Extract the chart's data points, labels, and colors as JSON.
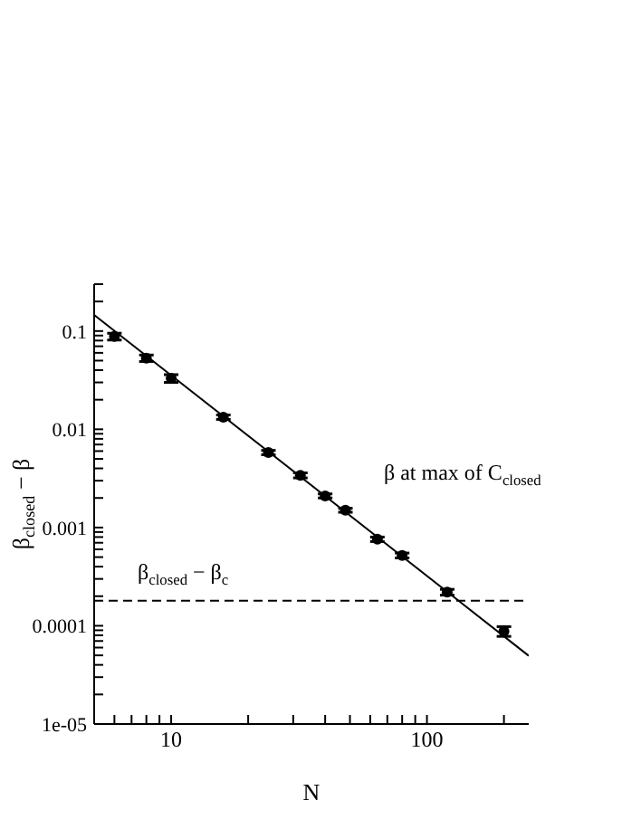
{
  "chart_data": {
    "type": "scatter",
    "xlabel": "N",
    "ylabel": "β$_{closed}$ − β",
    "log": "xy",
    "xlim": [
      5,
      250
    ],
    "ylim": [
      1e-05,
      0.3
    ],
    "xticks": [
      {
        "value": 5,
        "label": null
      },
      {
        "value": 6,
        "label": null
      },
      {
        "value": 7,
        "label": null
      },
      {
        "value": 8,
        "label": null
      },
      {
        "value": 9,
        "label": null
      },
      10,
      {
        "value": 20,
        "label": null
      },
      {
        "value": 30,
        "label": null
      },
      {
        "value": 40,
        "label": null
      },
      {
        "value": 50,
        "label": null
      },
      {
        "value": 60,
        "label": null
      },
      {
        "value": 70,
        "label": null
      },
      {
        "value": 80,
        "label": null
      },
      {
        "value": 90,
        "label": null
      },
      100,
      {
        "value": 200,
        "label": null
      }
    ],
    "yticks": [
      {
        "value": 1e-05,
        "label": "1e-05"
      },
      {
        "value": 2e-05,
        "label": null
      },
      {
        "value": 3e-05,
        "label": null
      },
      {
        "value": 4e-05,
        "label": null
      },
      {
        "value": 5e-05,
        "label": null
      },
      {
        "value": 6e-05,
        "label": null
      },
      {
        "value": 7e-05,
        "label": null
      },
      {
        "value": 8e-05,
        "label": null
      },
      {
        "value": 9e-05,
        "label": null
      },
      {
        "value": 0.0001,
        "label": "0.0001"
      },
      {
        "value": 0.0002,
        "label": null
      },
      {
        "value": 0.0003,
        "label": null
      },
      {
        "value": 0.0004,
        "label": null
      },
      {
        "value": 0.0005,
        "label": null
      },
      {
        "value": 0.0006,
        "label": null
      },
      {
        "value": 0.0007,
        "label": null
      },
      {
        "value": 0.0008,
        "label": null
      },
      {
        "value": 0.0009,
        "label": null
      },
      0.001,
      {
        "value": 0.002,
        "label": null
      },
      {
        "value": 0.003,
        "label": null
      },
      {
        "value": 0.004,
        "label": null
      },
      {
        "value": 0.005,
        "label": null
      },
      {
        "value": 0.006,
        "label": null
      },
      {
        "value": 0.007,
        "label": null
      },
      {
        "value": 0.008,
        "label": null
      },
      {
        "value": 0.009,
        "label": null
      },
      0.01,
      {
        "value": 0.02,
        "label": null
      },
      {
        "value": 0.03,
        "label": null
      },
      {
        "value": 0.04,
        "label": null
      },
      {
        "value": 0.05,
        "label": null
      },
      {
        "value": 0.06,
        "label": null
      },
      {
        "value": 0.07,
        "label": null
      },
      {
        "value": 0.08,
        "label": null
      },
      {
        "value": 0.09,
        "label": null
      },
      0.1,
      {
        "value": 0.2,
        "label": null
      },
      {
        "value": 0.3,
        "label": null
      }
    ],
    "x": [
      6,
      8,
      10,
      16,
      24,
      32,
      40,
      48,
      64,
      80,
      120,
      200
    ],
    "series": [
      {
        "color": "#000000",
        "marker": "circle",
        "values": [
          0.088,
          0.053,
          0.033,
          0.0133,
          0.0058,
          0.0034,
          0.0021,
          0.0015,
          0.00076,
          0.00052,
          0.00022,
          8.8e-05
        ],
        "errors": [
          0.007,
          0.004,
          0.003,
          0.0007,
          0.0003,
          0.0002,
          0.0001,
          7e-05,
          4e-05,
          3e-05,
          1.5e-05,
          1e-05
        ]
      },
      {
        "type": "line",
        "color": "#000000",
        "x": [
          5,
          250
        ],
        "values": [
          0.146,
          4.95e-05
        ],
        "line_style": "solid"
      }
    ],
    "ref_lines": [
      {
        "axis": "y",
        "value": 0.00018,
        "label": "β$_{closed}$ − β$_{c}$",
        "line_style": "dashed",
        "color": "#000000"
      }
    ],
    "annotations": [
      "β at max of C$_{closed}$"
    ]
  }
}
